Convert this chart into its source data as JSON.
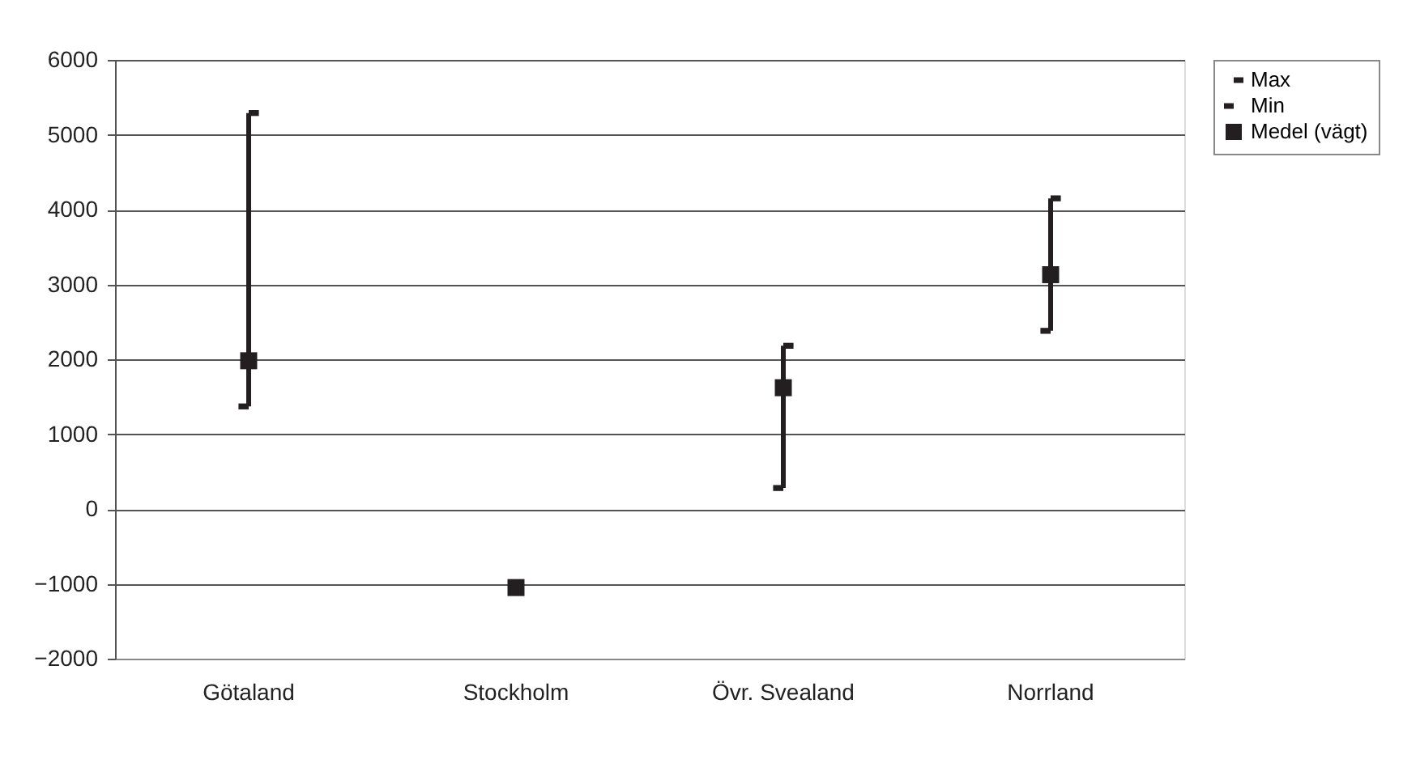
{
  "chart_data": {
    "type": "scatter",
    "categories": [
      "Götaland",
      "Stockholm",
      "Övr. Svealand",
      "Norrland"
    ],
    "series": [
      {
        "name": "Max",
        "color": "#231f20",
        "values": [
          5290,
          null,
          2180,
          4150
        ]
      },
      {
        "name": "Min",
        "color": "#231f20",
        "values": [
          1370,
          null,
          280,
          2380
        ]
      },
      {
        "name": "Medel (vägt)",
        "color": "#231f20",
        "marker": "square",
        "values": [
          1980,
          -1050,
          1620,
          3130
        ],
        "errors": [
          [
            1370,
            5290
          ],
          null,
          [
            280,
            2180
          ],
          [
            2380,
            4150
          ]
        ]
      }
    ],
    "ylim": [
      -2000,
      6000
    ],
    "yticks": [
      -2000,
      -1000,
      0,
      1000,
      2000,
      3000,
      4000,
      5000,
      6000
    ],
    "grid": "y",
    "legend": "right"
  }
}
